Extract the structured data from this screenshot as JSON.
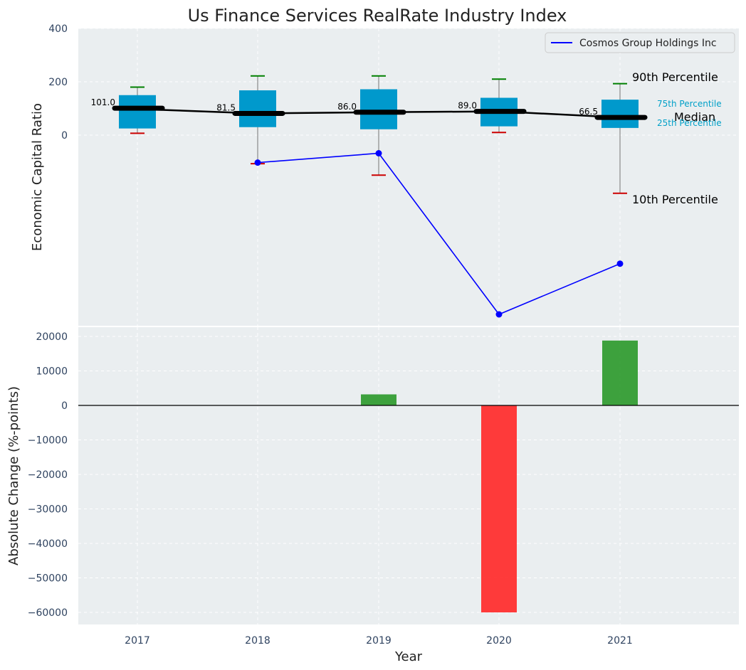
{
  "title": "Us Finance Services RealRate Industry Index",
  "colors": {
    "box": "#0099cc",
    "median": "#000000",
    "company": "#0000ff",
    "p90": "#008000",
    "p10": "#cc0000",
    "positive": "#2e9a2e",
    "negative": "#ff2a2a",
    "panel_bg": "#eaeef0",
    "grid": "#ffffff",
    "tick_text": "#2f4360",
    "pct_text": "#00a0c8"
  },
  "chart_data": [
    {
      "type": "box",
      "ylabel": "Economic Capital Ratio",
      "ylim": [
        -710,
        400
      ],
      "yticks": [
        "400",
        "200",
        "0"
      ],
      "ytick_values": [
        400,
        200,
        0
      ],
      "categories": [
        "2017",
        "2018",
        "2019",
        "2020",
        "2021"
      ],
      "p10": [
        7,
        -107,
        -150,
        10,
        -218
      ],
      "p25": [
        25,
        30,
        22,
        33,
        27
      ],
      "median": [
        101.0,
        81.5,
        86.0,
        89.0,
        66.5
      ],
      "median_labels": [
        "101.0",
        "81.5",
        "86.0",
        "89.0",
        "66.5"
      ],
      "p75": [
        150,
        168,
        172,
        140,
        133
      ],
      "p90": [
        180,
        222,
        222,
        210,
        193
      ],
      "company_series": {
        "name": "Cosmos Group Holdings Inc",
        "values": [
          null,
          -103,
          -68,
          -672,
          -482
        ]
      },
      "annotations": {
        "p90": "90th Percentile",
        "p75": "75th Percentile",
        "median": "Median",
        "p25": "25th Percentile",
        "p10": "10th Percentile"
      },
      "legend_position": "top-right"
    },
    {
      "type": "bar",
      "ylabel": "Absolute Change (%-points)",
      "xlabel": "Year",
      "ylim": [
        -64000,
        24000
      ],
      "yticks": [
        "20000",
        "10000",
        "0",
        "−10000",
        "−20000",
        "−30000",
        "−40000",
        "−50000",
        "−60000"
      ],
      "ytick_values": [
        20000,
        10000,
        0,
        -10000,
        -20000,
        -30000,
        -40000,
        -50000,
        -60000
      ],
      "categories": [
        "2017",
        "2018",
        "2019",
        "2020",
        "2021"
      ],
      "values": [
        0,
        0,
        3200,
        -60000,
        18800
      ]
    }
  ]
}
